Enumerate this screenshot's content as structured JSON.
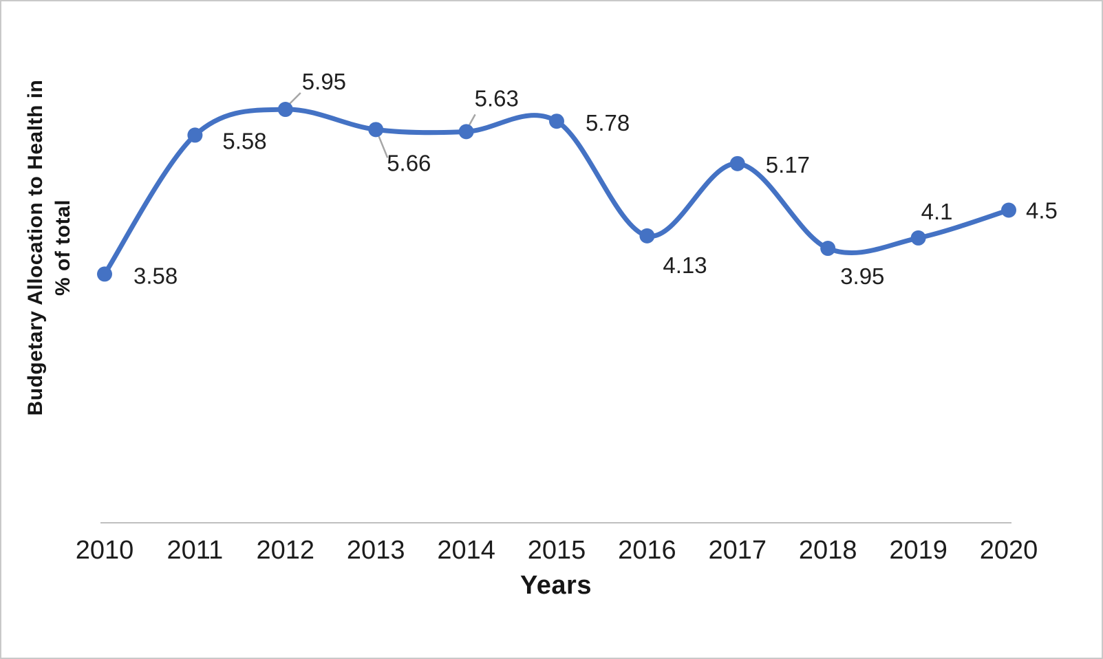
{
  "chart_data": {
    "type": "line",
    "title": "",
    "xlabel": "Years",
    "ylabel": "Budgetary Allocation to Health in % of total",
    "ylabel_lines": [
      "Budgetary Allocation to Health in",
      "% of total"
    ],
    "categories": [
      "2010",
      "2011",
      "2012",
      "2013",
      "2014",
      "2015",
      "2016",
      "2017",
      "2018",
      "2019",
      "2020"
    ],
    "values": [
      3.58,
      5.58,
      5.95,
      5.66,
      5.63,
      5.78,
      4.13,
      5.17,
      3.95,
      4.1,
      4.5
    ],
    "data_labels": [
      "3.58",
      "5.58",
      "5.95",
      "5.66",
      "5.63",
      "5.78",
      "4.13",
      "5.17",
      "3.95",
      "4.1",
      "4.5"
    ],
    "ylim": [
      0,
      7.5
    ],
    "grid": false,
    "legend": "none",
    "smooth": true,
    "marker": "circle",
    "line_color": "#4472C4",
    "marker_color": "#4472C4",
    "axis_line_color": "#BFBFBF",
    "leader_line_color": "#A6A6A6",
    "label_color": "#1F1F1F",
    "tick_color": "#1C1C1C"
  }
}
